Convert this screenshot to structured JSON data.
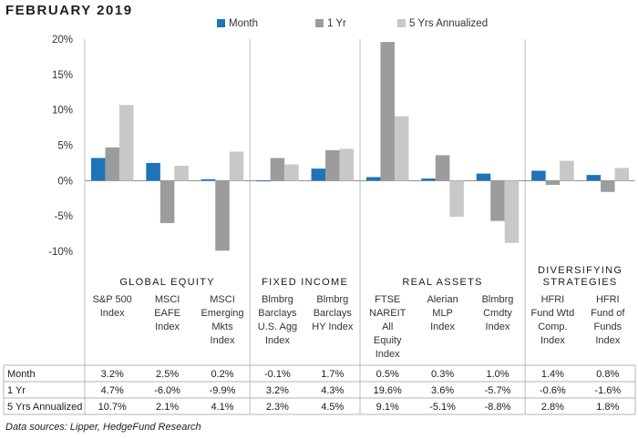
{
  "title": "FEBRUARY 2019",
  "source": "Data sources: Lipper, HedgeFund Research",
  "colors": {
    "month": "#1f73b7",
    "yr1": "#9c9c9c",
    "yr5": "#c8c8c8"
  },
  "chart_data": {
    "type": "bar",
    "ylim": [
      -10,
      20
    ],
    "yticks": [
      "-10%",
      "-5%",
      "0%",
      "5%",
      "10%",
      "15%",
      "20%"
    ],
    "grid": false,
    "legend_position": "top",
    "groups": [
      {
        "label": "GLOBAL EQUITY",
        "count": 3
      },
      {
        "label": "FIXED INCOME",
        "count": 2
      },
      {
        "label": "REAL ASSETS",
        "count": 3
      },
      {
        "label": "DIVERSIFYING STRATEGIES",
        "count": 2
      }
    ],
    "categories": [
      "S&P 500 Index",
      "MSCI EAFE Index",
      "MSCI Emerging Mkts Index",
      "Blmbrg Barclays U.S. Agg Index",
      "Blmbrg Barclays HY Index",
      "FTSE NAREIT All Equity Index",
      "Alerian MLP Index",
      "Blmbrg Cmdty Index",
      "HFRI Fund Wtd Comp. Index",
      "HFRI Fund of Funds Index"
    ],
    "series": [
      {
        "name": "Month",
        "values": [
          3.2,
          2.5,
          0.2,
          -0.1,
          1.7,
          0.5,
          0.3,
          1.0,
          1.4,
          0.8
        ]
      },
      {
        "name": "1 Yr",
        "values": [
          4.7,
          -6.0,
          -9.9,
          3.2,
          4.3,
          19.6,
          3.6,
          -5.7,
          -0.6,
          -1.6
        ]
      },
      {
        "name": "5 Yrs Annualized",
        "values": [
          10.7,
          2.1,
          4.1,
          2.3,
          4.5,
          9.1,
          -5.1,
          -8.8,
          2.8,
          1.8
        ]
      }
    ]
  }
}
